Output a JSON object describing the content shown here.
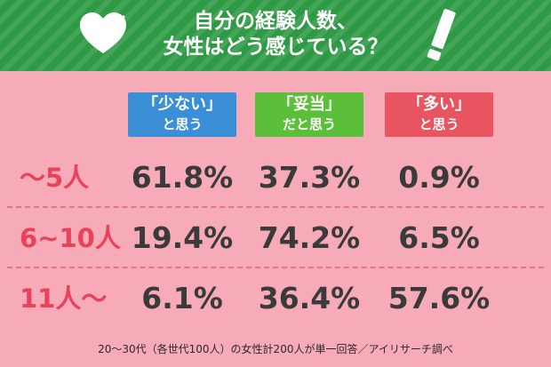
{
  "title": {
    "line1": "自分の経験人数、",
    "line2": "女性はどう感じている？"
  },
  "icons": {
    "heart": "heart-icon",
    "marker": "marker-icon"
  },
  "colors": {
    "background": "#f7aab8",
    "banner": "#2f9a45",
    "col_blue": "#3a8fd6",
    "col_green": "#5cbf3a",
    "col_red": "#e85560",
    "row_label": "#e8435a",
    "value_text": "#3a3a3a"
  },
  "chart_data": {
    "type": "table",
    "columns": [
      {
        "line1": "「少ない」",
        "line2": "と思う",
        "color": "#3a8fd6"
      },
      {
        "line1": "「妥当」",
        "line2": "だと思う",
        "color": "#5cbf3a"
      },
      {
        "line1": "「多い」",
        "line2": "と思う",
        "color": "#e85560"
      }
    ],
    "rows": [
      {
        "label": "〜5人",
        "values": [
          "61.8%",
          "37.3%",
          "0.9%"
        ]
      },
      {
        "label": "6~10人",
        "values": [
          "19.4%",
          "74.2%",
          "6.5%"
        ]
      },
      {
        "label": "11人〜",
        "values": [
          "6.1%",
          "36.4%",
          "57.6%"
        ]
      }
    ]
  },
  "footnote": "20〜30代（各世代100人）の女性計200人が単一回答／アイリサーチ調べ"
}
